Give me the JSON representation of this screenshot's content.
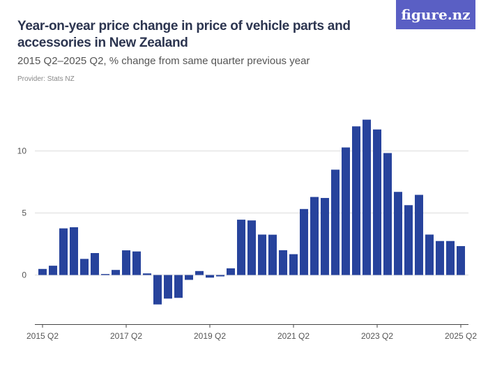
{
  "title": "Year-on-year price change in price of vehicle parts and accessories in New Zealand",
  "subtitle": "2015 Q2–2025 Q2, % change from same quarter previous year",
  "provider": "Provider: Stats NZ",
  "logo": "figure.nz",
  "colors": {
    "bar": "#27439c",
    "logo_bg": "#5a5fc4"
  },
  "chart_data": {
    "type": "bar",
    "categories": [
      "2015 Q2",
      "2015 Q3",
      "2015 Q4",
      "2016 Q1",
      "2016 Q2",
      "2016 Q3",
      "2016 Q4",
      "2017 Q1",
      "2017 Q2",
      "2017 Q3",
      "2017 Q4",
      "2018 Q1",
      "2018 Q2",
      "2018 Q3",
      "2018 Q4",
      "2019 Q1",
      "2019 Q2",
      "2019 Q3",
      "2019 Q4",
      "2020 Q1",
      "2020 Q2",
      "2020 Q3",
      "2020 Q4",
      "2021 Q1",
      "2021 Q2",
      "2021 Q3",
      "2021 Q4",
      "2022 Q1",
      "2022 Q2",
      "2022 Q3",
      "2022 Q4",
      "2023 Q1",
      "2023 Q2",
      "2023 Q3",
      "2023 Q4",
      "2024 Q1",
      "2024 Q2",
      "2024 Q3",
      "2024 Q4",
      "2025 Q1",
      "2025 Q2"
    ],
    "values": [
      0.49,
      0.75,
      3.76,
      3.85,
      1.3,
      1.77,
      0.08,
      0.41,
      1.99,
      1.9,
      0.13,
      -2.37,
      -1.9,
      -1.84,
      -0.39,
      0.32,
      -0.21,
      -0.11,
      0.54,
      4.46,
      4.4,
      3.26,
      3.25,
      2.0,
      1.68,
      5.32,
      6.29,
      6.21,
      8.49,
      10.28,
      11.98,
      12.52,
      11.73,
      9.83,
      6.7,
      5.63,
      6.46,
      3.26,
      2.74,
      2.74,
      2.33
    ],
    "xtick_labels": [
      "2015 Q2",
      "2017 Q2",
      "2019 Q2",
      "2021 Q2",
      "2023 Q2",
      "2025 Q2"
    ],
    "ytick_labels": [
      "0",
      "5",
      "10"
    ],
    "yticks": [
      0,
      5,
      10
    ],
    "ylim": [
      -4,
      14
    ],
    "grid": true,
    "xlabel": "",
    "ylabel": ""
  }
}
